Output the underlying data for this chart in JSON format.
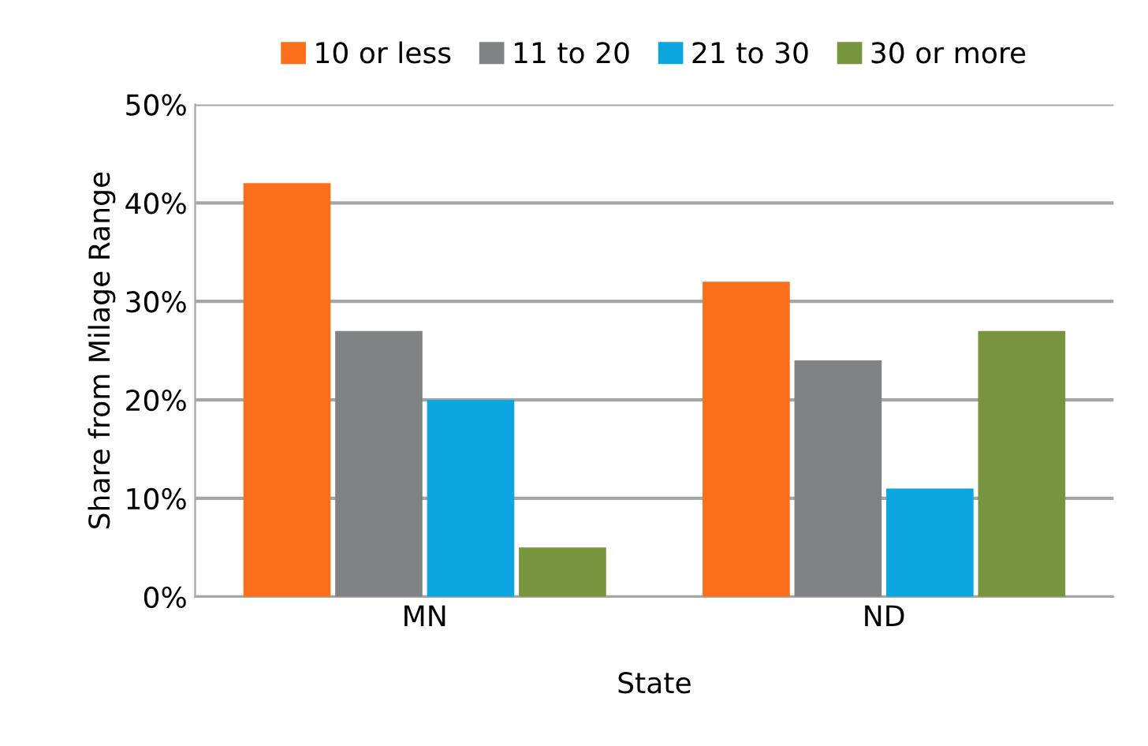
{
  "chart_data": {
    "type": "bar",
    "xlabel": "State",
    "ylabel": "Share from Milage Range",
    "categories": [
      "MN",
      "ND"
    ],
    "series": [
      {
        "name": "10 or less",
        "color": "#fb6f1c",
        "values": [
          42,
          32
        ]
      },
      {
        "name": "11 to 20",
        "color": "#808285",
        "values": [
          27,
          24
        ]
      },
      {
        "name": "21 to 30",
        "color": "#0ca6e0",
        "values": [
          20,
          11
        ]
      },
      {
        "name": "30 or more",
        "color": "#77953c",
        "values": [
          5,
          27
        ]
      }
    ],
    "ylim": [
      0,
      50
    ],
    "yticks": [
      {
        "value": 0,
        "label": "0%"
      },
      {
        "value": 10,
        "label": "10%"
      },
      {
        "value": 20,
        "label": "20%"
      },
      {
        "value": 30,
        "label": "30%"
      },
      {
        "value": 40,
        "label": "40%"
      },
      {
        "value": 50,
        "label": "50%"
      }
    ],
    "grid": "y",
    "legend": "top"
  }
}
